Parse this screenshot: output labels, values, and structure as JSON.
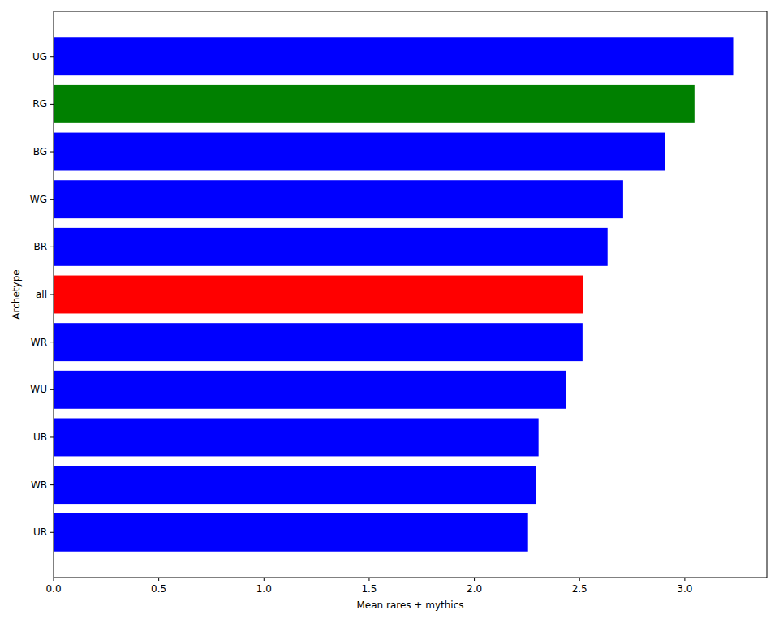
{
  "chart_data": {
    "type": "bar",
    "orientation": "horizontal",
    "x_label": "Mean rares + mythics",
    "y_label": "Archetype",
    "categories": [
      "UG",
      "RG",
      "BG",
      "WG",
      "BR",
      "all",
      "WR",
      "WU",
      "UB",
      "WB",
      "UR"
    ],
    "values": [
      3.23,
      3.046,
      2.907,
      2.707,
      2.633,
      2.517,
      2.514,
      2.436,
      2.305,
      2.293,
      2.255
    ],
    "colors": [
      "#0000ff",
      "#008000",
      "#0000ff",
      "#0000ff",
      "#0000ff",
      "#ff0000",
      "#0000ff",
      "#0000ff",
      "#0000ff",
      "#0000ff",
      "#0000ff"
    ],
    "xlim": [
      0,
      3.39
    ],
    "xticks": [
      {
        "value": 0,
        "label": "0.0"
      },
      0.5,
      {
        "value": 1,
        "label": "1.0"
      },
      1.5,
      {
        "value": 2,
        "label": "2.0"
      },
      2.5,
      {
        "value": 3,
        "label": "3.0"
      }
    ],
    "grid": false
  }
}
